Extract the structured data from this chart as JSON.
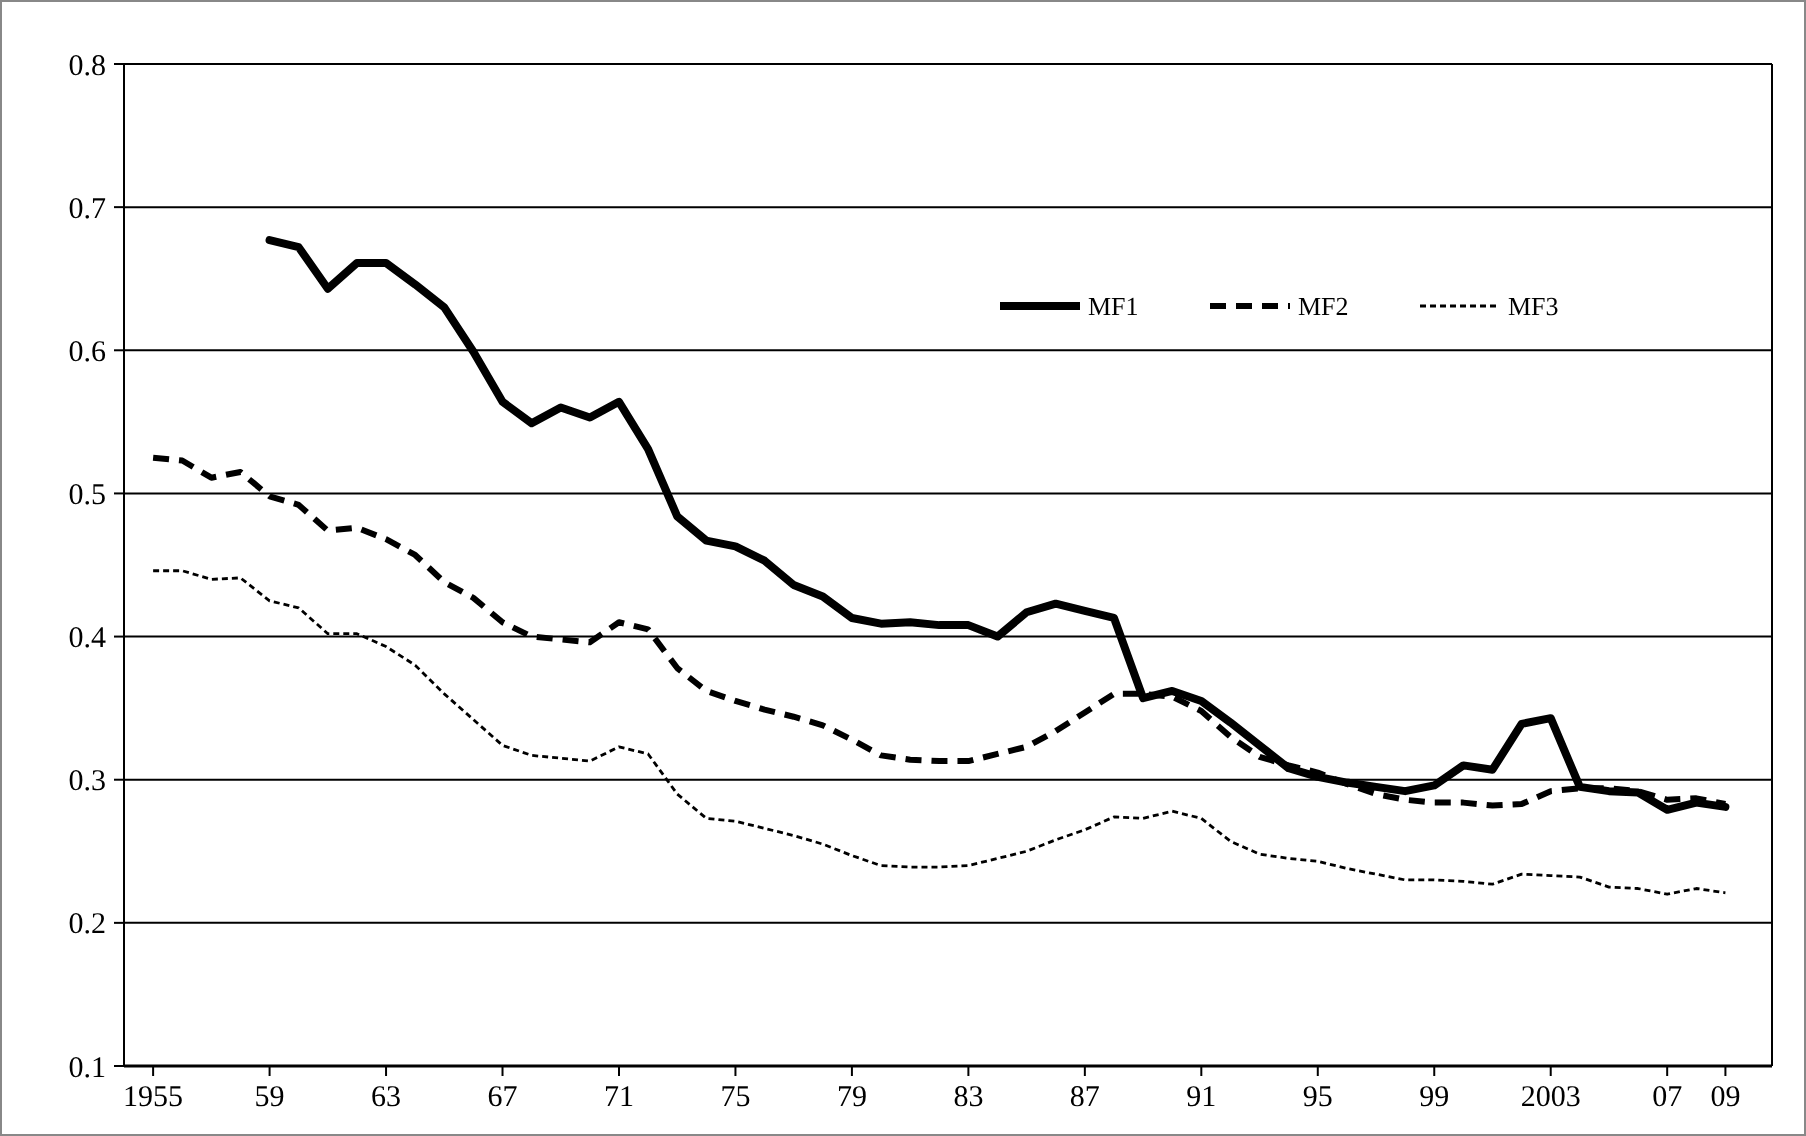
{
  "chart_data": {
    "type": "line",
    "x": [
      1955,
      1956,
      1957,
      1958,
      1959,
      1960,
      1961,
      1962,
      1963,
      1964,
      1965,
      1966,
      1967,
      1968,
      1969,
      1970,
      1971,
      1972,
      1973,
      1974,
      1975,
      1976,
      1977,
      1978,
      1979,
      1980,
      1981,
      1982,
      1983,
      1984,
      1985,
      1986,
      1987,
      1988,
      1989,
      1990,
      1991,
      1992,
      1993,
      1994,
      1995,
      1996,
      1997,
      1998,
      1999,
      2000,
      2001,
      2002,
      2003,
      2004,
      2005,
      2006,
      2007,
      2008,
      2009
    ],
    "series": [
      {
        "name": "MF1",
        "color": "#000000",
        "line_style": "solid",
        "values": [
          null,
          null,
          null,
          null,
          0.677,
          0.672,
          0.643,
          0.661,
          0.661,
          0.646,
          0.63,
          0.599,
          0.564,
          0.549,
          0.56,
          0.553,
          0.564,
          0.531,
          0.484,
          0.467,
          0.463,
          0.453,
          0.436,
          0.428,
          0.413,
          0.409,
          0.41,
          0.408,
          0.408,
          0.4,
          0.417,
          0.423,
          0.418,
          0.413,
          0.357,
          0.362,
          0.355,
          0.34,
          0.324,
          0.308,
          0.302,
          0.298,
          0.295,
          0.292,
          0.296,
          0.31,
          0.307,
          0.339,
          0.343,
          0.295,
          0.292,
          0.291,
          0.279,
          0.284,
          0.281
        ]
      },
      {
        "name": "MF2",
        "color": "#000000",
        "line_style": "dashed",
        "values": [
          0.525,
          0.523,
          0.511,
          0.515,
          0.498,
          0.492,
          0.474,
          0.476,
          0.468,
          0.457,
          0.438,
          0.427,
          0.41,
          0.4,
          0.398,
          0.396,
          0.41,
          0.405,
          0.378,
          0.362,
          0.355,
          0.349,
          0.344,
          0.338,
          0.328,
          0.317,
          0.314,
          0.313,
          0.313,
          0.318,
          0.323,
          0.334,
          0.347,
          0.36,
          0.36,
          0.358,
          0.348,
          0.33,
          0.316,
          0.31,
          0.305,
          0.297,
          0.29,
          0.286,
          0.284,
          0.284,
          0.282,
          0.283,
          0.292,
          0.294,
          0.294,
          0.292,
          0.286,
          0.287,
          0.283
        ]
      },
      {
        "name": "MF3",
        "color": "#000000",
        "line_style": "dotted",
        "values": [
          0.446,
          0.446,
          0.44,
          0.441,
          0.425,
          0.42,
          0.402,
          0.402,
          0.393,
          0.38,
          0.36,
          0.342,
          0.324,
          0.317,
          0.315,
          0.313,
          0.323,
          0.318,
          0.29,
          0.273,
          0.271,
          0.266,
          0.261,
          0.255,
          0.247,
          0.24,
          0.239,
          0.239,
          0.24,
          0.245,
          0.25,
          0.258,
          0.265,
          0.274,
          0.273,
          0.278,
          0.273,
          0.257,
          0.248,
          0.245,
          0.243,
          0.238,
          0.234,
          0.23,
          0.23,
          0.229,
          0.227,
          0.234,
          0.233,
          0.232,
          0.225,
          0.224,
          0.22,
          0.224,
          0.221
        ]
      }
    ],
    "xlim": [
      1954,
      2010.6
    ],
    "xticks": [
      1955,
      {
        "value": 1959,
        "label": "59"
      },
      {
        "value": 1963,
        "label": "63"
      },
      {
        "value": 1967,
        "label": "67"
      },
      {
        "value": 1971,
        "label": "71"
      },
      {
        "value": 1975,
        "label": "75"
      },
      {
        "value": 1979,
        "label": "79"
      },
      {
        "value": 1983,
        "label": "83"
      },
      {
        "value": 1987,
        "label": "87"
      },
      {
        "value": 1991,
        "label": "91"
      },
      {
        "value": 1995,
        "label": "95"
      },
      {
        "value": 1999,
        "label": "99"
      },
      2003,
      {
        "value": 2007,
        "label": "07"
      },
      {
        "value": 2009,
        "label": "09"
      }
    ],
    "ylim": [
      0.1,
      0.8
    ],
    "yticks": [
      0.1,
      0.2,
      0.3,
      0.4,
      0.5,
      0.6,
      0.7,
      0.8
    ],
    "grid": "y",
    "legend": "top right",
    "marker": "none"
  }
}
